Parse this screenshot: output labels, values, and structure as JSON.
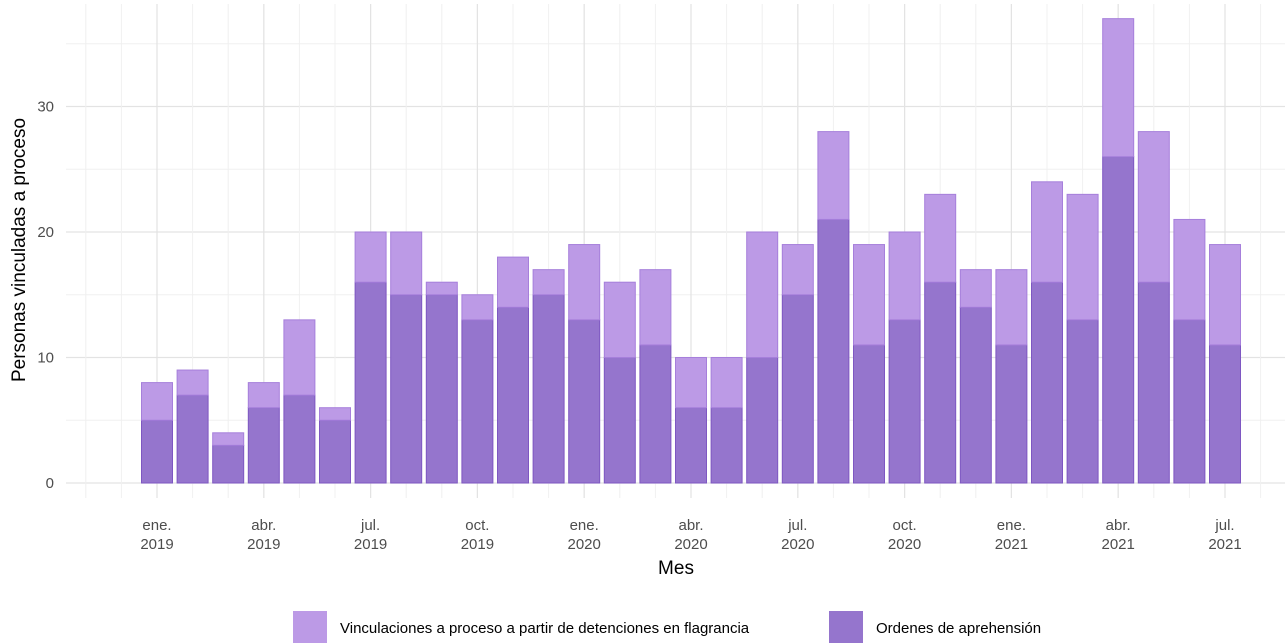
{
  "chart_data": {
    "type": "bar",
    "stacked": true,
    "xlabel": "Mes",
    "ylabel": "Personas vinculadas a proceso",
    "ylim": [
      0,
      37
    ],
    "yticks": [
      0,
      10,
      20,
      30
    ],
    "grid": true,
    "legend_position": "bottom",
    "x_ticks": [
      {
        "month_index": 0,
        "line1": "ene.",
        "line2": "2019"
      },
      {
        "month_index": 3,
        "line1": "abr.",
        "line2": "2019"
      },
      {
        "month_index": 6,
        "line1": "jul.",
        "line2": "2019"
      },
      {
        "month_index": 9,
        "line1": "oct.",
        "line2": "2019"
      },
      {
        "month_index": 12,
        "line1": "ene.",
        "line2": "2020"
      },
      {
        "month_index": 15,
        "line1": "abr.",
        "line2": "2020"
      },
      {
        "month_index": 18,
        "line1": "jul.",
        "line2": "2020"
      },
      {
        "month_index": 21,
        "line1": "oct.",
        "line2": "2020"
      },
      {
        "month_index": 24,
        "line1": "ene.",
        "line2": "2021"
      },
      {
        "month_index": 27,
        "line1": "abr.",
        "line2": "2021"
      },
      {
        "month_index": 30,
        "line1": "jul.",
        "line2": "2021"
      }
    ],
    "categories": [
      "2019-01",
      "2019-02",
      "2019-03",
      "2019-04",
      "2019-05",
      "2019-06",
      "2019-07",
      "2019-08",
      "2019-09",
      "2019-10",
      "2019-11",
      "2019-12",
      "2020-01",
      "2020-02",
      "2020-03",
      "2020-04",
      "2020-05",
      "2020-06",
      "2020-07",
      "2020-08",
      "2020-09",
      "2020-10",
      "2020-11",
      "2020-12",
      "2021-01",
      "2021-02",
      "2021-03",
      "2021-04",
      "2021-05",
      "2021-06",
      "2021-07"
    ],
    "series": [
      {
        "name": "Ordenes de aprehensión",
        "color": "#9575cd",
        "stroke": "#7e57c2",
        "values": [
          5,
          7,
          3,
          6,
          7,
          5,
          16,
          15,
          15,
          13,
          14,
          15,
          13,
          10,
          11,
          6,
          6,
          10,
          15,
          21,
          11,
          13,
          16,
          14,
          11,
          16,
          13,
          26,
          16,
          13,
          11
        ]
      },
      {
        "name": "Vinculaciones a proceso a partir de detenciones en flagrancia",
        "color": "#bc9ae6",
        "stroke": "#a67fdb",
        "values": [
          3,
          2,
          1,
          2,
          6,
          1,
          4,
          5,
          1,
          2,
          4,
          2,
          6,
          6,
          6,
          4,
          4,
          10,
          4,
          7,
          8,
          7,
          7,
          3,
          6,
          8,
          10,
          11,
          12,
          8,
          8
        ]
      }
    ],
    "legend_order": [
      1,
      0
    ]
  }
}
